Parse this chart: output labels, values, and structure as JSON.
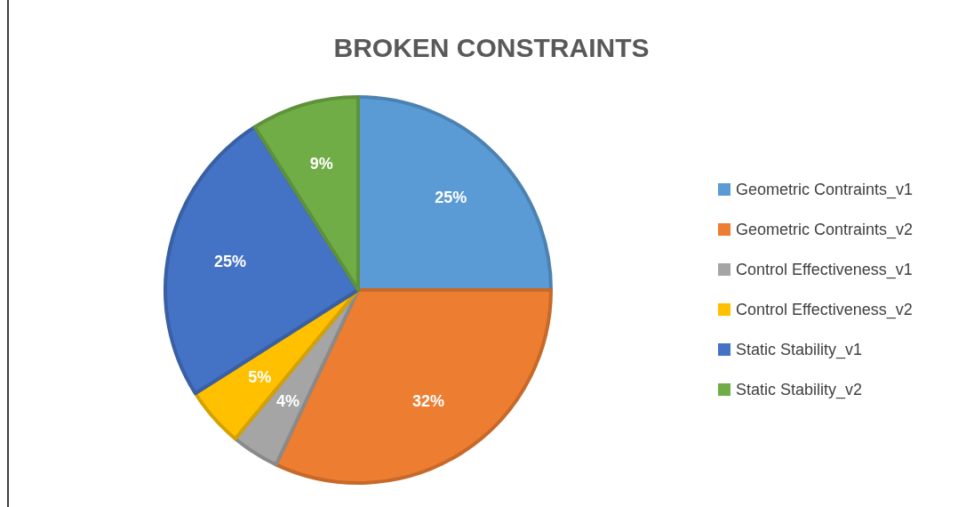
{
  "chart_data": {
    "type": "pie",
    "title": "BROKEN CONSTRAINTS",
    "categories": [
      "Geometric Contraints_v1",
      "Geometric Contraints_v2",
      "Control Effectiveness_v1",
      "Control Effectiveness_v2",
      "Static Stability_v1",
      "Static Stability_v2"
    ],
    "values": [
      25,
      32,
      4,
      5,
      25,
      9
    ],
    "colors": [
      "#5b9bd5",
      "#ed7d31",
      "#a5a5a5",
      "#ffc000",
      "#4472c4",
      "#70ad47"
    ],
    "value_labels": [
      "25%",
      "32%",
      "4%",
      "5%",
      "25%",
      "9%"
    ],
    "legend": "right"
  }
}
